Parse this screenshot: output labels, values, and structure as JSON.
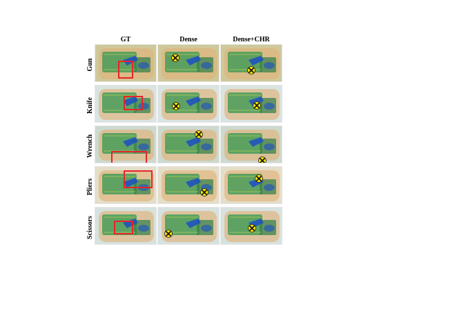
{
  "figure": {
    "columns": [
      "GT",
      "Dense",
      "Dense+CHR"
    ],
    "rows": [
      "Gun",
      "Knife",
      "Wrench",
      "Pliers",
      "Scissors"
    ]
  },
  "colors": {
    "gt_box": "#e8232a",
    "wrong_mark": "#ffe600",
    "wrong_mark_outline": "#222222",
    "xray_green": "#3f9a55",
    "xray_blue": "#1c4fc4",
    "xray_orange": "#e0b27a",
    "bg_light": "#dfe8e8"
  },
  "marker_icon": "cross-mark-icon"
}
